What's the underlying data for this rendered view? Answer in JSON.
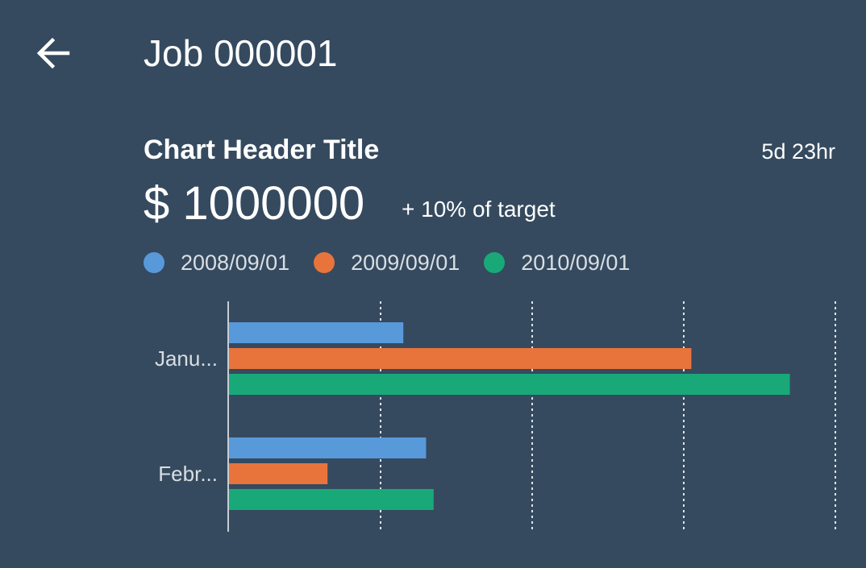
{
  "header": {
    "title": "Job 000001",
    "back_icon": "arrow-left-icon"
  },
  "card": {
    "title": "Chart Header Title",
    "duration": "5d 23hr",
    "kpi_value": "$ 1000000",
    "kpi_delta": "+ 10% of target"
  },
  "colors": {
    "background": "#354a5f",
    "axis": "#c8cdd2",
    "grid": "#ffffff"
  },
  "chart_data": {
    "type": "bar",
    "orientation": "horizontal",
    "categories": [
      "Janu...",
      "Febr..."
    ],
    "series": [
      {
        "name": "2008/09/01",
        "color": "#5899da",
        "values": [
          23,
          26
        ]
      },
      {
        "name": "2009/09/01",
        "color": "#e8743b",
        "values": [
          61,
          13
        ]
      },
      {
        "name": "2010/09/01",
        "color": "#19a979",
        "values": [
          74,
          27
        ]
      }
    ],
    "xlim": [
      0,
      80
    ],
    "grid": true,
    "gridlines_at": [
      20,
      40,
      60,
      80
    ],
    "legend_position": "top-left"
  }
}
